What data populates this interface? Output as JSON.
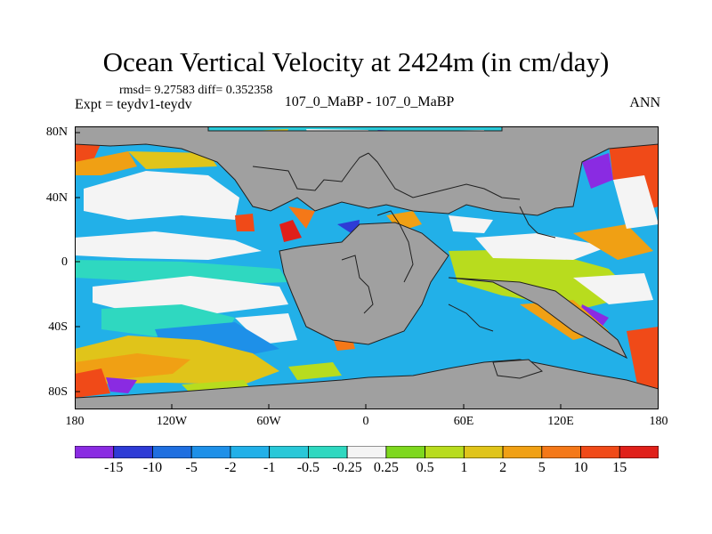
{
  "title": "Ocean Vertical Velocity at 2424m (in cm/day)",
  "stats": "rmsd= 9.27583 diff= 0.352358",
  "left_label": "Expt = teydv1-teydv",
  "center_label": "107_0_MaBP - 107_0_MaBP",
  "right_label": "ANN",
  "lat_labels": [
    "80N",
    "40N",
    "0",
    "40S",
    "80S"
  ],
  "lon_labels": [
    "180",
    "120W",
    "60W",
    "0",
    "60E",
    "120E",
    "180"
  ],
  "colorbar": {
    "levels": [
      "-15",
      "-10",
      "-5",
      "-2",
      "-1",
      "-0.5",
      "-0.25",
      "0.25",
      "0.5",
      "1",
      "2",
      "5",
      "10",
      "15"
    ],
    "colors": [
      "#8a2be2",
      "#2e3bd6",
      "#1f6fe0",
      "#1e90e8",
      "#22b0e8",
      "#29c8d8",
      "#2fd8c0",
      "#f4f4f4",
      "#7ed81e",
      "#b8dc1e",
      "#e0c41a",
      "#f0a014",
      "#f47818",
      "#f04a18",
      "#e0201a"
    ]
  },
  "colors": {
    "land": "#a0a0a0",
    "coast": "#202020"
  }
}
